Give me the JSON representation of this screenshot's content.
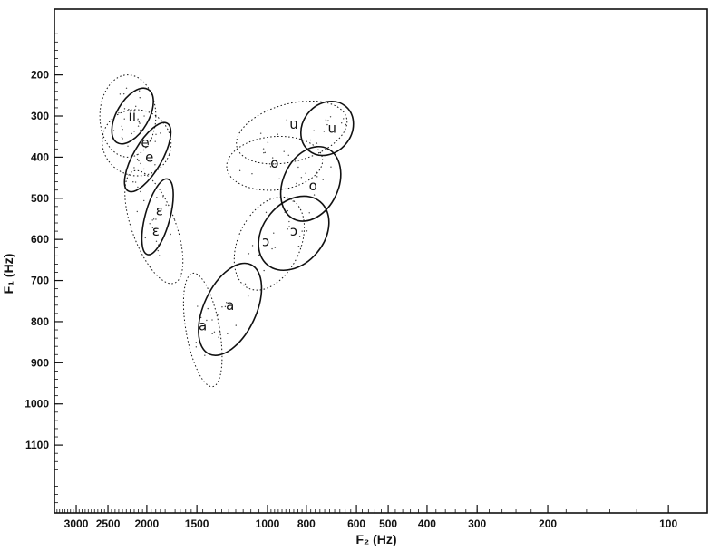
{
  "chart_data": {
    "type": "scatter",
    "title": "",
    "xlabel": "F₂ (Hz)",
    "ylabel": "F₁ (Hz)",
    "x_scale": "log (reversed)",
    "y_scale": "reversed",
    "xlim": [
      3400,
      80
    ],
    "ylim": [
      1265,
      40
    ],
    "x_ticks": [
      3000,
      2500,
      2000,
      1500,
      1000,
      800,
      600,
      500,
      400,
      300,
      200,
      100
    ],
    "x_tick_labels": [
      "3000",
      "2500",
      "2000",
      "1500",
      "1000",
      "800",
      "600",
      "500",
      "400",
      "300",
      "200",
      "100"
    ],
    "y_ticks": [
      200,
      300,
      400,
      500,
      600,
      700,
      800,
      900,
      1000,
      1100
    ],
    "y_tick_labels": [
      "200",
      "300",
      "400",
      "500",
      "600",
      "700",
      "800",
      "900",
      "1000",
      "1100"
    ],
    "grid": false,
    "legend": "none",
    "colors": {
      "ink": "#111111",
      "background": "#ffffff"
    },
    "vowels": [
      {
        "label": "i",
        "f2": 2200,
        "f1": 300
      },
      {
        "label": "i",
        "f2": 2150,
        "f1": 300
      },
      {
        "label": "e",
        "f2": 2020,
        "f1": 365
      },
      {
        "label": "e",
        "f2": 1970,
        "f1": 400
      },
      {
        "label": "ɛ",
        "f2": 1860,
        "f1": 530
      },
      {
        "label": "ɛ",
        "f2": 1900,
        "f1": 580
      },
      {
        "label": "a",
        "f2": 1450,
        "f1": 810
      },
      {
        "label": "a",
        "f2": 1240,
        "f1": 760
      },
      {
        "label": "u",
        "f2": 860,
        "f1": 320
      },
      {
        "label": "u",
        "f2": 690,
        "f1": 330
      },
      {
        "label": "o",
        "f2": 960,
        "f1": 415
      },
      {
        "label": "o",
        "f2": 770,
        "f1": 470
      },
      {
        "label": "ɔ",
        "f2": 1010,
        "f1": 605
      },
      {
        "label": "ɔ",
        "f2": 860,
        "f1": 580
      }
    ],
    "ellipses": [
      {
        "vowel": "i",
        "style": "dotted",
        "f2": 2230,
        "f1": 300,
        "f2_range": [
          1900,
          2620
        ],
        "f1_range": [
          200,
          400
        ],
        "rotation": 0
      },
      {
        "vowel": "i",
        "style": "solid",
        "f2": 2170,
        "f1": 300,
        "f2_range": [
          1980,
          2380
        ],
        "f1_range": [
          230,
          380
        ],
        "rotation": 30
      },
      {
        "vowel": "e",
        "style": "dotted",
        "f2": 2120,
        "f1": 365,
        "f2_range": [
          1760,
          2620
        ],
        "f1_range": [
          290,
          450
        ],
        "rotation": 20
      },
      {
        "vowel": "e",
        "style": "solid",
        "f2": 1990,
        "f1": 400,
        "f2_range": [
          1850,
          2180
        ],
        "f1_range": [
          310,
          500
        ],
        "rotation": 30
      },
      {
        "vowel": "ɛ",
        "style": "dotted",
        "f2": 1920,
        "f1": 570,
        "f2_range": [
          1710,
          2200
        ],
        "f1_range": [
          430,
          720
        ],
        "rotation": -20
      },
      {
        "vowel": "ɛ",
        "style": "solid",
        "f2": 1880,
        "f1": 545,
        "f2_range": [
          1760,
          2030
        ],
        "f1_range": [
          460,
          650
        ],
        "rotation": 15
      },
      {
        "vowel": "a",
        "style": "dotted",
        "f2": 1450,
        "f1": 820,
        "f2_range": [
          1320,
          1600
        ],
        "f1_range": [
          680,
          960
        ],
        "rotation": -10
      },
      {
        "vowel": "a",
        "style": "solid",
        "f2": 1240,
        "f1": 770,
        "f2_range": [
          1060,
          1430
        ],
        "f1_range": [
          660,
          900
        ],
        "rotation": 25
      },
      {
        "vowel": "u",
        "style": "dotted",
        "f2": 870,
        "f1": 340,
        "f2_range": [
          620,
          1190
        ],
        "f1_range": [
          280,
          420
        ],
        "rotation": -15
      },
      {
        "vowel": "u",
        "style": "solid",
        "f2": 710,
        "f1": 330,
        "f2_range": [
          620,
          820
        ],
        "f1_range": [
          270,
          410
        ],
        "rotation": 40
      },
      {
        "vowel": "o",
        "style": "dotted",
        "f2": 960,
        "f1": 415,
        "f2_range": [
          760,
          1320
        ],
        "f1_range": [
          350,
          480
        ],
        "rotation": -5
      },
      {
        "vowel": "o",
        "style": "solid",
        "f2": 780,
        "f1": 465,
        "f2_range": [
          670,
          920
        ],
        "f1_range": [
          370,
          560
        ],
        "rotation": 25
      },
      {
        "vowel": "ɔ",
        "style": "dotted",
        "f2": 990,
        "f1": 610,
        "f2_range": [
          840,
          1200
        ],
        "f1_range": [
          490,
          730
        ],
        "rotation": 25
      },
      {
        "vowel": "ɔ",
        "style": "solid",
        "f2": 860,
        "f1": 585,
        "f2_range": [
          720,
          1020
        ],
        "f1_range": [
          490,
          690
        ],
        "rotation": 40
      }
    ]
  }
}
